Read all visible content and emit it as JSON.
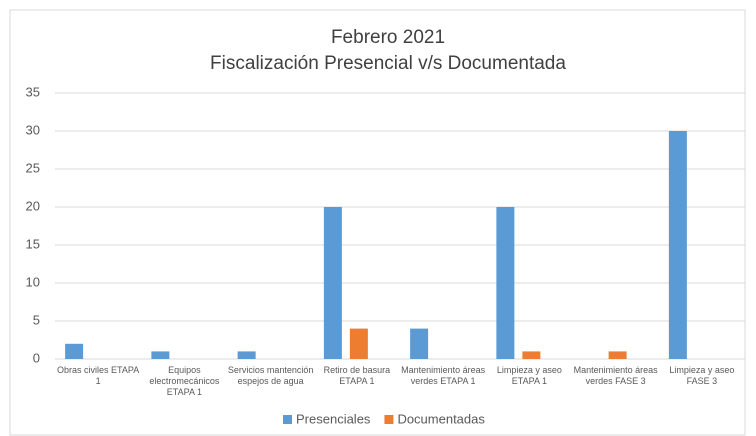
{
  "chart_data": {
    "type": "bar",
    "title": "Febrero 2021",
    "subtitle": "Fiscalización Presencial v/s Documentada",
    "categories": [
      "Obras civiles ETAPA 1",
      "Equipos electromecánicos ETAPA 1",
      "Servicios mantención espejos de agua",
      "Retiro de basura ETAPA 1",
      "Mantenimiento áreas verdes ETAPA 1",
      "Limpieza y aseo ETAPA 1",
      "Mantenimiento áreas verdes FASE 3",
      "Limpieza y aseo FASE 3"
    ],
    "series": [
      {
        "name": "Presenciales",
        "color": "#5b9bd5",
        "values": [
          2,
          1,
          1,
          20,
          4,
          20,
          0,
          30
        ]
      },
      {
        "name": "Documentadas",
        "color": "#ed7d31",
        "values": [
          0,
          0,
          0,
          4,
          0,
          1,
          1,
          0
        ]
      }
    ],
    "ylim": [
      0,
      35
    ],
    "yticks": [
      0,
      5,
      10,
      15,
      20,
      25,
      30,
      35
    ],
    "grid": true,
    "legend": "bottom"
  }
}
